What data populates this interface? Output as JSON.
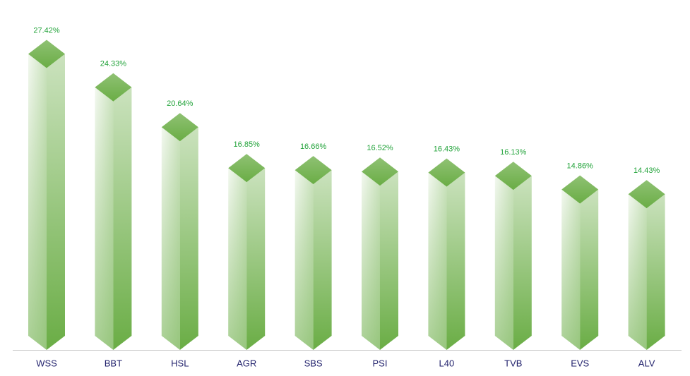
{
  "chart_data": {
    "type": "bar",
    "categories": [
      "WSS",
      "BBT",
      "HSL",
      "AGR",
      "SBS",
      "PSI",
      "L40",
      "TVB",
      "EVS",
      "ALV"
    ],
    "values": [
      27.42,
      24.33,
      20.64,
      16.85,
      16.66,
      16.52,
      16.43,
      16.13,
      14.86,
      14.43
    ],
    "value_labels": [
      "27.42%",
      "24.33%",
      "20.64%",
      "16.85%",
      "16.66%",
      "16.52%",
      "16.43%",
      "16.13%",
      "14.86%",
      "14.43%"
    ],
    "color": "#6aad45"
  }
}
